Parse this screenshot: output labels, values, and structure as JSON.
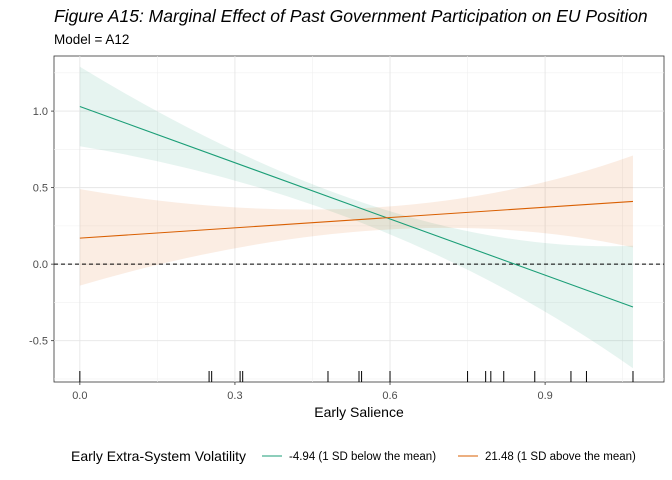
{
  "chart_data": {
    "type": "line",
    "title": "Figure A15: Marginal Effect of Past Government Participation on EU Position",
    "subtitle": "Model = A12",
    "xlabel": "Early Salience",
    "ylabel": "",
    "xlim": [
      -0.05,
      1.13
    ],
    "ylim": [
      -0.77,
      1.36
    ],
    "x_ticks": [
      0.0,
      0.3,
      0.6,
      0.9
    ],
    "x_tick_labels": [
      "0.0",
      "0.3",
      "0.6",
      "0.9"
    ],
    "y_ticks": [
      -0.5,
      0.0,
      0.5,
      1.0
    ],
    "y_tick_labels": [
      "-0.5",
      "0.0",
      "0.5",
      "1.0"
    ],
    "reference_line": {
      "y": 0,
      "style": "dashed"
    },
    "grid": true,
    "legend": {
      "position": "bottom",
      "title": "Early Extra-System Volatility"
    },
    "series": [
      {
        "name": "-4.94 (1 SD below the mean)",
        "color": "#1b9e77",
        "x": [
          0.0,
          1.07
        ],
        "y": [
          1.03,
          -0.28
        ],
        "lower": [
          0.77,
          -0.68
        ],
        "upper": [
          1.29,
          0.12
        ],
        "band_mid": {
          "x": 0.6,
          "lower": 0.24,
          "upper": 0.38
        }
      },
      {
        "name": "21.48 (1 SD above the mean)",
        "color": "#d95f02",
        "x": [
          0.0,
          1.07
        ],
        "y": [
          0.17,
          0.41
        ],
        "lower": [
          -0.14,
          0.11
        ],
        "upper": [
          0.49,
          0.71
        ],
        "band_mid": {
          "x": 0.6,
          "lower": 0.22,
          "upper": 0.37
        }
      }
    ],
    "rug_x": [
      0.0,
      0.25,
      0.255,
      0.31,
      0.315,
      0.48,
      0.54,
      0.545,
      0.6,
      0.75,
      0.785,
      0.795,
      0.82,
      0.88,
      0.95,
      0.98,
      1.07
    ]
  }
}
